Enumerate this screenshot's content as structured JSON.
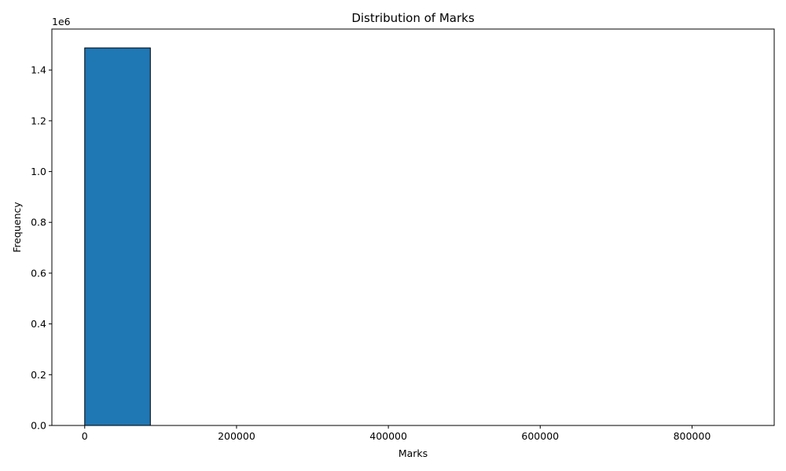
{
  "chart_data": {
    "type": "bar",
    "title": "Distribution of Marks",
    "xlabel": "Marks",
    "ylabel": "Frequency",
    "y_offset_label": "1e6",
    "bins": [
      {
        "x0": 0,
        "x1": 86500,
        "value": 1487000
      },
      {
        "x0": 86500,
        "x1": 173000,
        "value": 0
      },
      {
        "x0": 173000,
        "x1": 259500,
        "value": 0
      },
      {
        "x0": 259500,
        "x1": 346000,
        "value": 0
      },
      {
        "x0": 346000,
        "x1": 432500,
        "value": 0
      },
      {
        "x0": 432500,
        "x1": 519000,
        "value": 0
      },
      {
        "x0": 519000,
        "x1": 605500,
        "value": 0
      },
      {
        "x0": 605500,
        "x1": 692000,
        "value": 0
      },
      {
        "x0": 692000,
        "x1": 778500,
        "value": 0
      },
      {
        "x0": 778500,
        "x1": 865000,
        "value": 0
      }
    ],
    "xlim": [
      -43250,
      908250
    ],
    "ylim": [
      0,
      1561350
    ],
    "x_ticks": [
      0,
      200000,
      400000,
      600000,
      800000
    ],
    "x_tick_labels": [
      "0",
      "200000",
      "400000",
      "600000",
      "800000"
    ],
    "y_ticks": [
      0,
      200000,
      400000,
      600000,
      800000,
      1000000,
      1200000,
      1400000
    ],
    "y_tick_labels": [
      "0.0",
      "0.2",
      "0.4",
      "0.6",
      "0.8",
      "1.0",
      "1.2",
      "1.4"
    ],
    "bar_color": "#1f77b4",
    "edge_color": "#000000",
    "grid": false,
    "legend": "none"
  }
}
